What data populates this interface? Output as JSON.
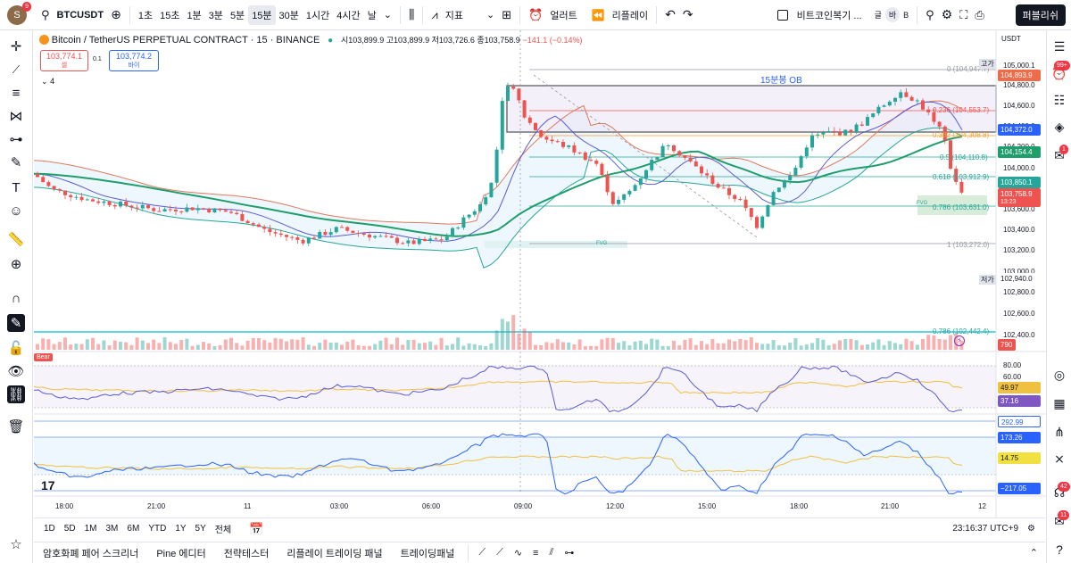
{
  "header": {
    "avatar_letter": "S",
    "avatar_badge": "9",
    "symbol": "BTCUSDT",
    "intervals": [
      "1초",
      "15초",
      "1분",
      "3분",
      "5분",
      "15분",
      "30분",
      "1시간",
      "4시간",
      "날"
    ],
    "active_interval": "15분",
    "indicators_label": "지표",
    "alert_label": "얼러트",
    "replay_label": "리플레이",
    "layout_name": "비트코인복기 ...",
    "session_opts": [
      "글",
      "바",
      "B"
    ],
    "publish_label": "퍼블리쉬"
  },
  "legend": {
    "title": "Bitcoin / TetherUS PERPETUAL CONTRACT · 15 · BINANCE",
    "ohlc": "시103,899.9 고103,899.9 저103,726.6 종103,758.9",
    "change": "−141.1 (−0.14%)",
    "sell_price": "103,774.1",
    "sell_label": "셀",
    "spread": "0.1",
    "buy_price": "103,774.2",
    "buy_label": "바이",
    "collapsed_count": "4"
  },
  "chart": {
    "currency": "USDT",
    "ob_label": "15분봉 OB",
    "fvg_label_1": "FVG",
    "fvg_label_2": "FVG",
    "high_tag": "고가",
    "low_tag": "저가",
    "price_axis": [
      "105,000.1",
      "104,800.0",
      "104,600.0",
      "104,400.0",
      "104,200.0",
      "104,000.0",
      "103,800.0",
      "103,600.0",
      "103,400.0",
      "103,200.0",
      "103,000.0",
      "102,800.0",
      "102,600.0",
      "102,400.0"
    ],
    "tags": {
      "high_val": "104,893.9",
      "p1": "104,372.0",
      "p2": "104,154.4",
      "p3": "103,850.1",
      "last": "103,758.9",
      "countdown": "13:23",
      "low_val": "102,940.0",
      "volume": "790"
    },
    "fib": [
      "0 (104,947.7)",
      "0.236 (104,553.7)",
      "0.382 (104,308.8)",
      "0.5 (104,110.8)",
      "0.618 (103,912.9)",
      "0.786 (103,631.0)",
      "1 (103,272.0)",
      "0.786 (102,442.4)"
    ]
  },
  "rsi": {
    "badge": "Bear",
    "levels": [
      "80.00",
      "60.00",
      "49.97",
      "37.16"
    ]
  },
  "osc": {
    "levels": [
      "292.99",
      "173.26",
      "14.75",
      "−217.05"
    ]
  },
  "time_axis": [
    "18:00",
    "21:00",
    "11",
    "03:00",
    "06:00",
    "09:00",
    "12:00",
    "15:00",
    "18:00",
    "21:00",
    "12"
  ],
  "ranges": [
    "1D",
    "5D",
    "1M",
    "3M",
    "6M",
    "YTD",
    "1Y",
    "5Y",
    "전체"
  ],
  "clock": "23:16:37 UTC+9",
  "bottom_tabs": [
    "암호화폐 페어 스크리너",
    "Pine 에디터",
    "전략테스터",
    "리플레이 트레이딩 패널",
    "트레이딩패널"
  ],
  "right_badges": {
    "alerts": "99+",
    "chat": "1",
    "ideas": "42",
    "notif": "11"
  },
  "colors": {
    "up": "#26a69a",
    "down": "#ef5350",
    "ema": "#1e9e6a",
    "bb": "#e07a5f",
    "vwap": "#5b5bd6",
    "accent": "#2962ff"
  }
}
